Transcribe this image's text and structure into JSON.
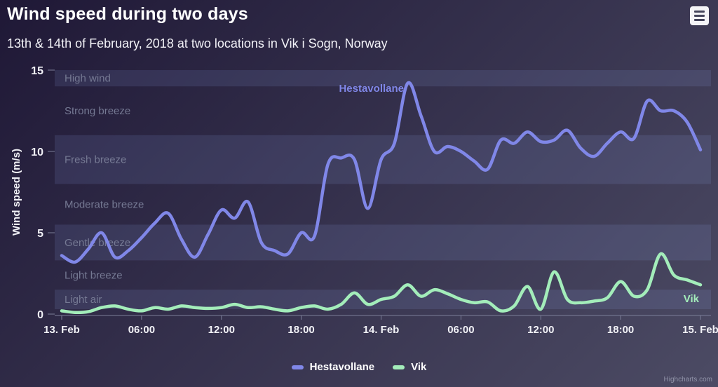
{
  "title": "Wind speed during two days",
  "subtitle": "13th & 14th of February, 2018 at two locations in Vik i Sogn, Norway",
  "menu": {
    "icon": "hamburger-menu-icon"
  },
  "credits": "Highcharts.com",
  "colors": {
    "background_top_left": "#1f1836",
    "background_bottom_right": "#4c4b64",
    "plot_band_fill": "rgba(160,185,255,0.12)",
    "band_label": "#757993",
    "axis": "#7c7f99",
    "title_text": "#ffffff",
    "series_hestavollane": "#8087E8",
    "series_vik": "#A3EDBA"
  },
  "chart_data": {
    "type": "line",
    "subtype": "spline",
    "title": "Wind speed during two days",
    "subtitle": "13th & 14th of February, 2018 at two locations in Vik i Sogn, Norway",
    "xlabel": "",
    "ylabel": "Wind speed (m/s)",
    "ylim": [
      0,
      15
    ],
    "yticks": [
      0,
      5,
      10,
      15
    ],
    "grid": false,
    "legend_position": "bottom-center",
    "x_unit": "hours since 13. Feb 2018 00:00",
    "x_start_hour": 0,
    "x_step_hours": 1,
    "xticks": [
      {
        "hour": 0,
        "label": "13. Feb"
      },
      {
        "hour": 6,
        "label": "06:00"
      },
      {
        "hour": 12,
        "label": "12:00"
      },
      {
        "hour": 18,
        "label": "18:00"
      },
      {
        "hour": 24,
        "label": "14. Feb"
      },
      {
        "hour": 30,
        "label": "06:00"
      },
      {
        "hour": 36,
        "label": "12:00"
      },
      {
        "hour": 42,
        "label": "18:00"
      },
      {
        "hour": 48,
        "label": "15. Feb"
      }
    ],
    "plot_bands": [
      {
        "from": 0.3,
        "to": 1.5,
        "label": "Light air",
        "shaded": true
      },
      {
        "from": 1.5,
        "to": 3.3,
        "label": "Light breeze",
        "shaded": false
      },
      {
        "from": 3.3,
        "to": 5.5,
        "label": "Gentle breeze",
        "shaded": true
      },
      {
        "from": 5.5,
        "to": 8,
        "label": "Moderate breeze",
        "shaded": false
      },
      {
        "from": 8,
        "to": 11,
        "label": "Fresh breeze",
        "shaded": true
      },
      {
        "from": 11,
        "to": 14,
        "label": "Strong breeze",
        "shaded": false
      },
      {
        "from": 14,
        "to": 15,
        "label": "High wind",
        "shaded": true
      }
    ],
    "series": [
      {
        "name": "Hestavollane",
        "color": "#8087E8",
        "values": [
          3.6,
          3.2,
          4.0,
          5.0,
          3.5,
          3.9,
          4.7,
          5.6,
          6.2,
          4.6,
          3.5,
          4.9,
          6.4,
          5.9,
          6.9,
          4.4,
          3.9,
          3.7,
          5.0,
          4.8,
          9.2,
          9.6,
          9.5,
          6.5,
          9.5,
          10.5,
          14.2,
          12.2,
          10.0,
          10.3,
          10.0,
          9.4,
          8.9,
          10.7,
          10.5,
          11.2,
          10.6,
          10.7,
          11.3,
          10.2,
          9.7,
          10.5,
          11.2,
          10.8,
          13.1,
          12.5,
          12.5,
          11.8,
          10.1
        ]
      },
      {
        "name": "Vik",
        "color": "#A3EDBA",
        "values": [
          0.2,
          0.1,
          0.15,
          0.4,
          0.5,
          0.3,
          0.2,
          0.4,
          0.3,
          0.5,
          0.4,
          0.35,
          0.4,
          0.6,
          0.4,
          0.45,
          0.3,
          0.2,
          0.4,
          0.5,
          0.3,
          0.6,
          1.3,
          0.6,
          0.9,
          1.1,
          1.8,
          1.1,
          1.5,
          1.25,
          0.9,
          0.7,
          0.75,
          0.2,
          0.5,
          1.7,
          0.3,
          2.6,
          0.9,
          0.7,
          0.8,
          1.0,
          2.0,
          1.1,
          1.5,
          3.7,
          2.4,
          2.1,
          1.8
        ]
      }
    ]
  }
}
